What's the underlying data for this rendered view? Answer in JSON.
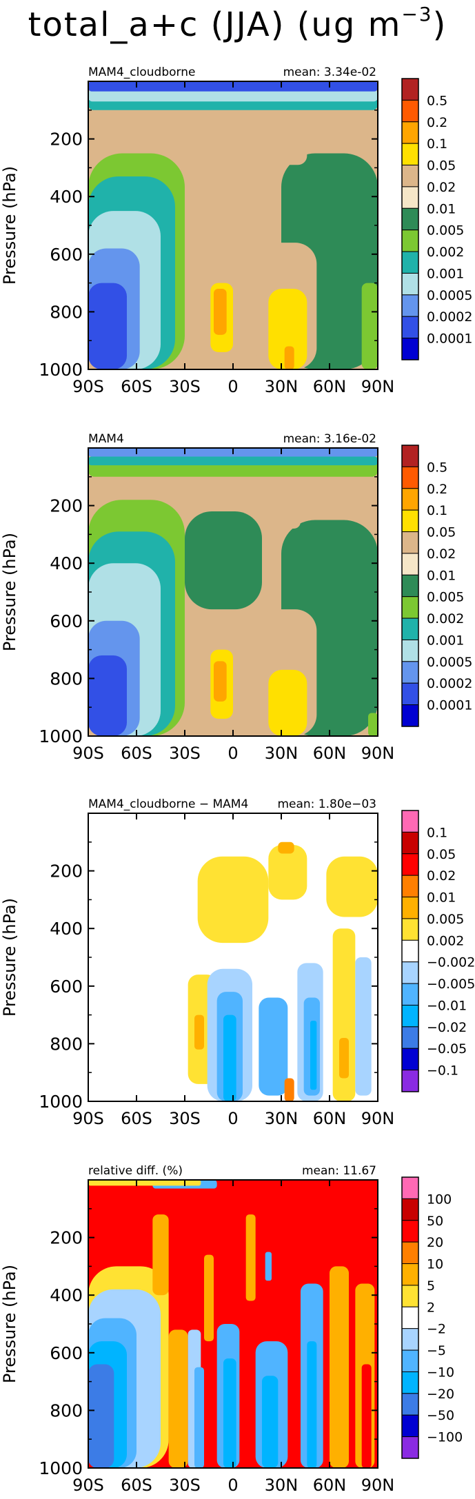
{
  "figure_title": {
    "text": "total_a+c (JJA) (ug m",
    "superscript": "−3",
    "close": ")"
  },
  "chart_data": [
    {
      "type": "heatmap",
      "title_left": "MAM4_cloudborne",
      "title_right": "mean: 3.34e-02",
      "ylabel": "Pressure (hPa)",
      "xticks": [
        "90S",
        "60S",
        "30S",
        "0",
        "30N",
        "60N",
        "90N"
      ],
      "yticks": [
        "200",
        "400",
        "600",
        "800",
        "1000"
      ],
      "xlim": [
        -90,
        90
      ],
      "ylim": [
        1000,
        0
      ],
      "colorbar_labels": [
        "0.5",
        "0.2",
        "0.1",
        "0.05",
        "0.02",
        "0.01",
        "0.005",
        "0.002",
        "0.001",
        "0.0005",
        "0.0002",
        "0.0001"
      ],
      "colorbar_colors": [
        "#b22222",
        "#ff5a00",
        "#ffa500",
        "#ffe000",
        "#dcb68a",
        "#f5e6c8",
        "#2e8b57",
        "#7cc832",
        "#20b2aa",
        "#b0e0e6",
        "#6495ed",
        "#3250e6",
        "#0000d2"
      ],
      "background": "#dcb68a",
      "regions": [
        {
          "lat": [
            30,
            90
          ],
          "p": [
            250,
            1000
          ],
          "level": "0.01"
        },
        {
          "lat": [
            -90,
            -30
          ],
          "p": [
            250,
            1000
          ],
          "level": "0.005"
        },
        {
          "lat": [
            -90,
            -36
          ],
          "p": [
            330,
            1000
          ],
          "level": "0.002"
        },
        {
          "lat": [
            -90,
            -45
          ],
          "p": [
            450,
            1000
          ],
          "level": "0.001"
        },
        {
          "lat": [
            -90,
            -58
          ],
          "p": [
            580,
            1000
          ],
          "level": "0.0005"
        },
        {
          "lat": [
            -90,
            -66
          ],
          "p": [
            700,
            1000
          ],
          "level": "0.0002"
        },
        {
          "lat": [
            -20,
            8
          ],
          "p": [
            600,
            1000
          ],
          "level": "0.05"
        },
        {
          "lat": [
            14,
            52
          ],
          "p": [
            560,
            1000
          ],
          "level": "0.05"
        },
        {
          "lat": [
            -14,
            0
          ],
          "p": [
            700,
            940
          ],
          "level": "0.1"
        },
        {
          "lat": [
            22,
            46
          ],
          "p": [
            720,
            1000
          ],
          "level": "0.1"
        },
        {
          "lat": [
            -12,
            -4
          ],
          "p": [
            720,
            880
          ],
          "level": "0.2"
        },
        {
          "lat": [
            32,
            38
          ],
          "p": [
            920,
            1000
          ],
          "level": "0.2"
        },
        {
          "lat": [
            30,
            46
          ],
          "p": [
            130,
            290
          ],
          "level": "0.05"
        },
        {
          "lat": [
            80,
            90
          ],
          "p": [
            700,
            1000
          ],
          "level": "0.005"
        },
        {
          "lat": [
            -90,
            90
          ],
          "p": [
            45,
            100
          ],
          "level": "0.002"
        },
        {
          "lat": [
            -90,
            90
          ],
          "p": [
            30,
            70
          ],
          "level": "0.001"
        },
        {
          "lat": [
            -90,
            90
          ],
          "p": [
            0,
            35
          ],
          "level": "0.0002"
        }
      ]
    },
    {
      "type": "heatmap",
      "title_left": "MAM4",
      "title_right": "mean: 3.16e-02",
      "ylabel": "Pressure (hPa)",
      "xticks": [
        "90S",
        "60S",
        "30S",
        "0",
        "30N",
        "60N",
        "90N"
      ],
      "yticks": [
        "200",
        "400",
        "600",
        "800",
        "1000"
      ],
      "xlim": [
        -90,
        90
      ],
      "ylim": [
        1000,
        0
      ],
      "colorbar_labels": [
        "0.5",
        "0.2",
        "0.1",
        "0.05",
        "0.02",
        "0.01",
        "0.005",
        "0.002",
        "0.001",
        "0.0005",
        "0.0002",
        "0.0001"
      ],
      "colorbar_colors": [
        "#b22222",
        "#ff5a00",
        "#ffa500",
        "#ffe000",
        "#dcb68a",
        "#f5e6c8",
        "#2e8b57",
        "#7cc832",
        "#20b2aa",
        "#b0e0e6",
        "#6495ed",
        "#3250e6",
        "#0000d2"
      ],
      "background": "#dcb68a",
      "regions": [
        {
          "lat": [
            -30,
            18
          ],
          "p": [
            220,
            560
          ],
          "level": "0.01"
        },
        {
          "lat": [
            30,
            90
          ],
          "p": [
            250,
            1000
          ],
          "level": "0.01"
        },
        {
          "lat": [
            -90,
            -30
          ],
          "p": [
            180,
            1000
          ],
          "level": "0.005"
        },
        {
          "lat": [
            -90,
            -36
          ],
          "p": [
            290,
            1000
          ],
          "level": "0.002"
        },
        {
          "lat": [
            -90,
            -45
          ],
          "p": [
            400,
            1000
          ],
          "level": "0.001"
        },
        {
          "lat": [
            -90,
            -58
          ],
          "p": [
            600,
            1000
          ],
          "level": "0.0005"
        },
        {
          "lat": [
            -90,
            -66
          ],
          "p": [
            720,
            1000
          ],
          "level": "0.0002"
        },
        {
          "lat": [
            -20,
            6
          ],
          "p": [
            640,
            1000
          ],
          "level": "0.05"
        },
        {
          "lat": [
            14,
            52
          ],
          "p": [
            560,
            1000
          ],
          "level": "0.05"
        },
        {
          "lat": [
            -14,
            0
          ],
          "p": [
            700,
            940
          ],
          "level": "0.1"
        },
        {
          "lat": [
            22,
            46
          ],
          "p": [
            770,
            1000
          ],
          "level": "0.1"
        },
        {
          "lat": [
            -12,
            -4
          ],
          "p": [
            740,
            880
          ],
          "level": "0.2"
        },
        {
          "lat": [
            30,
            42
          ],
          "p": [
            140,
            280
          ],
          "level": "0.05"
        },
        {
          "lat": [
            84,
            90
          ],
          "p": [
            920,
            1000
          ],
          "level": "0.005"
        },
        {
          "lat": [
            -90,
            90
          ],
          "p": [
            40,
            100
          ],
          "level": "0.005"
        },
        {
          "lat": [
            -90,
            90
          ],
          "p": [
            30,
            60
          ],
          "level": "0.002"
        },
        {
          "lat": [
            -90,
            90
          ],
          "p": [
            0,
            30
          ],
          "level": "0.0005"
        }
      ]
    },
    {
      "type": "heatmap",
      "title_left": "MAM4_cloudborne − MAM4",
      "title_right": "mean: 1.80e−03",
      "ylabel": "Pressure (hPa)",
      "xticks": [
        "90S",
        "60S",
        "30S",
        "0",
        "30N",
        "60N",
        "90N"
      ],
      "yticks": [
        "200",
        "400",
        "600",
        "800",
        "1000"
      ],
      "xlim": [
        -90,
        90
      ],
      "ylim": [
        1000,
        0
      ],
      "colorbar_labels": [
        "0.1",
        "0.05",
        "0.02",
        "0.01",
        "0.005",
        "0.002",
        "−0.002",
        "−0.005",
        "−0.01",
        "−0.02",
        "−0.05",
        "−0.1"
      ],
      "colorbar_colors": [
        "#ff69b4",
        "#c80000",
        "#ff0000",
        "#ff7f00",
        "#ffb000",
        "#ffe233",
        "#ffffff",
        "#a8d4ff",
        "#50b4ff",
        "#00b4ff",
        "#3c7ce6",
        "#0000d2",
        "#8a2be2"
      ],
      "background": "#ffffff",
      "regions": [
        {
          "lat": [
            -90,
            90
          ],
          "p": [
            130,
            260
          ],
          "level": "0.002"
        },
        {
          "lat": [
            -32,
            90
          ],
          "p": [
            100,
            620
          ],
          "level": "0.002"
        },
        {
          "lat": [
            -22,
            22
          ],
          "p": [
            150,
            450
          ],
          "level": "0.005"
        },
        {
          "lat": [
            58,
            90
          ],
          "p": [
            150,
            360
          ],
          "level": "0.005"
        },
        {
          "lat": [
            62,
            76
          ],
          "p": [
            400,
            1000
          ],
          "level": "0.005"
        },
        {
          "lat": [
            -28,
            -10
          ],
          "p": [
            560,
            940
          ],
          "level": "0.005"
        },
        {
          "lat": [
            14,
            56
          ],
          "p": [
            700,
            1000
          ],
          "level": "0.002"
        },
        {
          "lat": [
            22,
            46
          ],
          "p": [
            110,
            300
          ],
          "level": "0.005"
        },
        {
          "lat": [
            28,
            38
          ],
          "p": [
            100,
            140
          ],
          "level": "0.01"
        },
        {
          "lat": [
            -24,
            -18
          ],
          "p": [
            700,
            820
          ],
          "level": "0.01"
        },
        {
          "lat": [
            66,
            72
          ],
          "p": [
            780,
            920
          ],
          "level": "0.01"
        },
        {
          "lat": [
            -16,
            12
          ],
          "p": [
            540,
            1000
          ],
          "level": "−0.002"
        },
        {
          "lat": [
            -10,
            6
          ],
          "p": [
            620,
            1000
          ],
          "level": "−0.005"
        },
        {
          "lat": [
            -6,
            2
          ],
          "p": [
            700,
            1000
          ],
          "level": "−0.01"
        },
        {
          "lat": [
            16,
            34
          ],
          "p": [
            640,
            980
          ],
          "level": "−0.005"
        },
        {
          "lat": [
            40,
            56
          ],
          "p": [
            520,
            1000
          ],
          "level": "−0.002"
        },
        {
          "lat": [
            44,
            54
          ],
          "p": [
            640,
            980
          ],
          "level": "−0.005"
        },
        {
          "lat": [
            48,
            52
          ],
          "p": [
            720,
            960
          ],
          "level": "−0.01"
        },
        {
          "lat": [
            76,
            86
          ],
          "p": [
            500,
            980
          ],
          "level": "−0.002"
        },
        {
          "lat": [
            32,
            38
          ],
          "p": [
            920,
            1000
          ],
          "level": "0.02"
        }
      ]
    },
    {
      "type": "heatmap",
      "title_left": "relative diff. (%)",
      "title_right": "mean: 11.67",
      "ylabel": "Pressure (hPa)",
      "xticks": [
        "90S",
        "60S",
        "30S",
        "0",
        "30N",
        "60N",
        "90N"
      ],
      "yticks": [
        "200",
        "400",
        "600",
        "800",
        "1000"
      ],
      "xlim": [
        -90,
        90
      ],
      "ylim": [
        1000,
        0
      ],
      "colorbar_labels": [
        "100",
        "50",
        "20",
        "10",
        "5",
        "2",
        "−2",
        "−5",
        "−10",
        "−20",
        "−50",
        "−100"
      ],
      "colorbar_colors": [
        "#ff69b4",
        "#c80000",
        "#ff0000",
        "#ff7f00",
        "#ffb000",
        "#ffe233",
        "#ffffff",
        "#a8d4ff",
        "#50b4ff",
        "#00b4ff",
        "#3c7ce6",
        "#0000d2",
        "#8a2be2"
      ],
      "background": "#ff0000",
      "regions": [
        {
          "lat": [
            -90,
            -40
          ],
          "p": [
            300,
            1000
          ],
          "level": "5"
        },
        {
          "lat": [
            -90,
            -45
          ],
          "p": [
            380,
            1000
          ],
          "level": "−2"
        },
        {
          "lat": [
            -90,
            -60
          ],
          "p": [
            480,
            1000
          ],
          "level": "−5"
        },
        {
          "lat": [
            -90,
            -66
          ],
          "p": [
            560,
            1000
          ],
          "level": "−10"
        },
        {
          "lat": [
            -90,
            -74
          ],
          "p": [
            640,
            1000
          ],
          "level": "−20"
        },
        {
          "lat": [
            -40,
            -28
          ],
          "p": [
            520,
            1000
          ],
          "level": "10"
        },
        {
          "lat": [
            -28,
            -20
          ],
          "p": [
            520,
            1000
          ],
          "level": "−2"
        },
        {
          "lat": [
            -24,
            -18
          ],
          "p": [
            650,
            1000
          ],
          "level": "−5"
        },
        {
          "lat": [
            -10,
            4
          ],
          "p": [
            500,
            1000
          ],
          "level": "−5"
        },
        {
          "lat": [
            -6,
            2
          ],
          "p": [
            620,
            1000
          ],
          "level": "−10"
        },
        {
          "lat": [
            14,
            34
          ],
          "p": [
            560,
            1000
          ],
          "level": "−5"
        },
        {
          "lat": [
            18,
            28
          ],
          "p": [
            680,
            1000
          ],
          "level": "−10"
        },
        {
          "lat": [
            42,
            56
          ],
          "p": [
            360,
            1000
          ],
          "level": "−5"
        },
        {
          "lat": [
            46,
            52
          ],
          "p": [
            560,
            1000
          ],
          "level": "−10"
        },
        {
          "lat": [
            60,
            72
          ],
          "p": [
            300,
            1000
          ],
          "level": "10"
        },
        {
          "lat": [
            76,
            88
          ],
          "p": [
            360,
            1000
          ],
          "level": "10"
        },
        {
          "lat": [
            80,
            86
          ],
          "p": [
            640,
            1000
          ],
          "level": "50"
        },
        {
          "lat": [
            -18,
            -12
          ],
          "p": [
            260,
            560
          ],
          "level": "10"
        },
        {
          "lat": [
            -50,
            -40
          ],
          "p": [
            120,
            400
          ],
          "level": "10"
        },
        {
          "lat": [
            8,
            14
          ],
          "p": [
            120,
            420
          ],
          "level": "10"
        },
        {
          "lat": [
            20,
            24
          ],
          "p": [
            250,
            350
          ],
          "level": "−5"
        },
        {
          "lat": [
            -50,
            -10
          ],
          "p": [
            0,
            30
          ],
          "level": "−5"
        },
        {
          "lat": [
            -90,
            -20
          ],
          "p": [
            0,
            20
          ],
          "level": "5"
        }
      ]
    }
  ]
}
